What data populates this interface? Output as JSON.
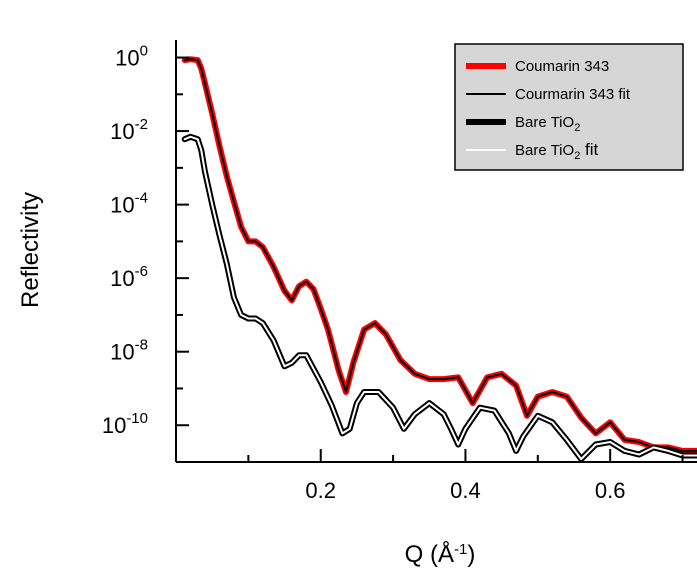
{
  "chart_data": {
    "type": "line",
    "title": "",
    "xlabel": {
      "text": "Q (Å",
      "sup": "-1",
      "close": ")"
    },
    "ylabel": "Reflectivity",
    "xlim": [
      0.0,
      0.72
    ],
    "ylim": [
      1e-11,
      3
    ],
    "yscale": "log",
    "grid": false,
    "legend_position": "top-right",
    "x_ticks": [
      {
        "value": 0.2,
        "label": "0.2"
      },
      {
        "value": 0.4,
        "label": "0.4"
      },
      {
        "value": 0.6,
        "label": "0.6"
      }
    ],
    "y_ticks": [
      {
        "value": 1,
        "base": "10",
        "exp": "0"
      },
      {
        "value": 0.01,
        "base": "10",
        "exp": "-2"
      },
      {
        "value": 0.0001,
        "base": "10",
        "exp": "-4"
      },
      {
        "value": 1e-06,
        "base": "10",
        "exp": "-6"
      },
      {
        "value": 1e-08,
        "base": "10",
        "exp": "-8"
      },
      {
        "value": 1e-10,
        "base": "10",
        "exp": "-10"
      }
    ],
    "series": [
      {
        "name": "Coumarin 343",
        "legend": {
          "text": "Coumarin 343",
          "sub": "",
          "tail": ""
        },
        "color": "#ff0000",
        "style": "thick",
        "x": [
          0.012,
          0.02,
          0.03,
          0.035,
          0.04,
          0.05,
          0.06,
          0.07,
          0.08,
          0.09,
          0.1,
          0.11,
          0.12,
          0.135,
          0.15,
          0.16,
          0.17,
          0.18,
          0.19,
          0.2,
          0.21,
          0.225,
          0.235,
          0.245,
          0.26,
          0.275,
          0.29,
          0.31,
          0.33,
          0.35,
          0.37,
          0.39,
          0.41,
          0.43,
          0.45,
          0.47,
          0.485,
          0.5,
          0.52,
          0.54,
          0.56,
          0.58,
          0.6,
          0.62,
          0.64,
          0.66,
          0.68,
          0.7,
          0.72
        ],
        "y": [
          0.85,
          0.9,
          0.85,
          0.5,
          0.2,
          0.03,
          0.004,
          0.0006,
          0.00012,
          2.5e-05,
          1e-05,
          1e-05,
          7e-06,
          2e-06,
          4.5e-07,
          2.5e-07,
          6e-07,
          8e-07,
          5e-07,
          1.5e-07,
          4e-08,
          3e-09,
          8e-10,
          5e-09,
          4e-08,
          6e-08,
          3e-08,
          6e-09,
          2.5e-09,
          1.8e-09,
          1.8e-09,
          2e-09,
          4e-10,
          2e-09,
          2.5e-09,
          1.2e-09,
          1.8e-10,
          6e-10,
          8e-10,
          6e-10,
          1.6e-10,
          6e-11,
          1.2e-10,
          4e-11,
          3.5e-11,
          2.5e-11,
          2.5e-11,
          2e-11,
          2e-11
        ]
      },
      {
        "name": "Courmarin 343 fit",
        "legend": {
          "text": "Courmarin 343 fit",
          "sub": "",
          "tail": ""
        },
        "color": "#000000",
        "style": "thin",
        "x": [
          0.012,
          0.02,
          0.03,
          0.035,
          0.04,
          0.05,
          0.06,
          0.07,
          0.08,
          0.09,
          0.1,
          0.11,
          0.12,
          0.135,
          0.15,
          0.16,
          0.17,
          0.18,
          0.19,
          0.2,
          0.21,
          0.225,
          0.235,
          0.245,
          0.26,
          0.275,
          0.29,
          0.31,
          0.33,
          0.35,
          0.37,
          0.39,
          0.41,
          0.43,
          0.45,
          0.47,
          0.485,
          0.5,
          0.52,
          0.54,
          0.56,
          0.58,
          0.6,
          0.62,
          0.64,
          0.66,
          0.68,
          0.7,
          0.72
        ],
        "y": [
          0.85,
          0.9,
          0.85,
          0.5,
          0.2,
          0.03,
          0.004,
          0.0006,
          0.00012,
          2.5e-05,
          1e-05,
          1e-05,
          7e-06,
          2e-06,
          4.5e-07,
          2.5e-07,
          6e-07,
          8e-07,
          5e-07,
          1.5e-07,
          4e-08,
          3e-09,
          8e-10,
          5e-09,
          4e-08,
          6e-08,
          3e-08,
          6e-09,
          2.5e-09,
          1.8e-09,
          1.8e-09,
          2e-09,
          4e-10,
          2e-09,
          2.5e-09,
          1.2e-09,
          1.8e-10,
          6e-10,
          8e-10,
          6e-10,
          1.6e-10,
          6e-11,
          1.2e-10,
          4e-11,
          3.5e-11,
          2.5e-11,
          2.5e-11,
          2e-11,
          2e-11
        ]
      },
      {
        "name": "Bare TiO2",
        "legend": {
          "text": "Bare TiO",
          "sub": "2",
          "tail": ""
        },
        "color": "#000000",
        "style": "thick",
        "x": [
          0.012,
          0.02,
          0.03,
          0.035,
          0.04,
          0.05,
          0.06,
          0.07,
          0.08,
          0.09,
          0.1,
          0.11,
          0.12,
          0.135,
          0.15,
          0.16,
          0.17,
          0.18,
          0.2,
          0.215,
          0.23,
          0.24,
          0.25,
          0.26,
          0.28,
          0.3,
          0.315,
          0.33,
          0.35,
          0.37,
          0.38,
          0.39,
          0.4,
          0.42,
          0.44,
          0.46,
          0.47,
          0.48,
          0.5,
          0.52,
          0.54,
          0.56,
          0.58,
          0.6,
          0.62,
          0.64,
          0.66,
          0.68,
          0.7,
          0.72
        ],
        "y": [
          0.006,
          0.007,
          0.006,
          0.003,
          0.0008,
          0.0001,
          1.5e-05,
          2.5e-06,
          3e-07,
          1e-07,
          8e-08,
          8e-08,
          6e-08,
          2e-08,
          4e-09,
          5e-09,
          8e-09,
          8e-09,
          1.5e-09,
          3.5e-10,
          6e-11,
          8e-11,
          4e-10,
          8e-10,
          8e-10,
          3e-10,
          8e-11,
          2e-10,
          4e-10,
          2e-10,
          8e-11,
          3e-11,
          8e-11,
          3e-10,
          2.5e-10,
          6e-11,
          2e-11,
          5e-11,
          1.8e-10,
          1.2e-10,
          4e-11,
          1.2e-11,
          3e-11,
          3.5e-11,
          2e-11,
          1.6e-11,
          2.5e-11,
          2e-11,
          1.5e-11,
          1.5e-11
        ]
      },
      {
        "name": "Bare TiO2 fit",
        "legend": {
          "text": "Bare TiO",
          "sub": "2",
          "tail": " fit"
        },
        "color": "#ffffff",
        "style": "thin",
        "x": [
          0.012,
          0.02,
          0.03,
          0.035,
          0.04,
          0.05,
          0.06,
          0.07,
          0.08,
          0.09,
          0.1,
          0.11,
          0.12,
          0.135,
          0.15,
          0.16,
          0.17,
          0.18,
          0.2,
          0.215,
          0.23,
          0.24,
          0.25,
          0.26,
          0.28,
          0.3,
          0.315,
          0.33,
          0.35,
          0.37,
          0.38,
          0.39,
          0.4,
          0.42,
          0.44,
          0.46,
          0.47,
          0.48,
          0.5,
          0.52,
          0.54,
          0.56,
          0.58,
          0.6,
          0.62,
          0.64,
          0.66,
          0.68,
          0.7,
          0.72
        ],
        "y": [
          0.006,
          0.007,
          0.006,
          0.003,
          0.0008,
          0.0001,
          1.5e-05,
          2.5e-06,
          3e-07,
          1e-07,
          8e-08,
          8e-08,
          6e-08,
          2e-08,
          4e-09,
          5e-09,
          8e-09,
          8e-09,
          1.5e-09,
          3.5e-10,
          6e-11,
          8e-11,
          4e-10,
          8e-10,
          8e-10,
          3e-10,
          8e-11,
          2e-10,
          4e-10,
          2e-10,
          8e-11,
          3e-11,
          8e-11,
          3e-10,
          2.5e-10,
          6e-11,
          2e-11,
          5e-11,
          1.8e-10,
          1.2e-10,
          4e-11,
          1.2e-11,
          3e-11,
          3.5e-11,
          2e-11,
          1.6e-11,
          2.5e-11,
          2e-11,
          1.5e-11,
          1.5e-11
        ]
      }
    ]
  }
}
